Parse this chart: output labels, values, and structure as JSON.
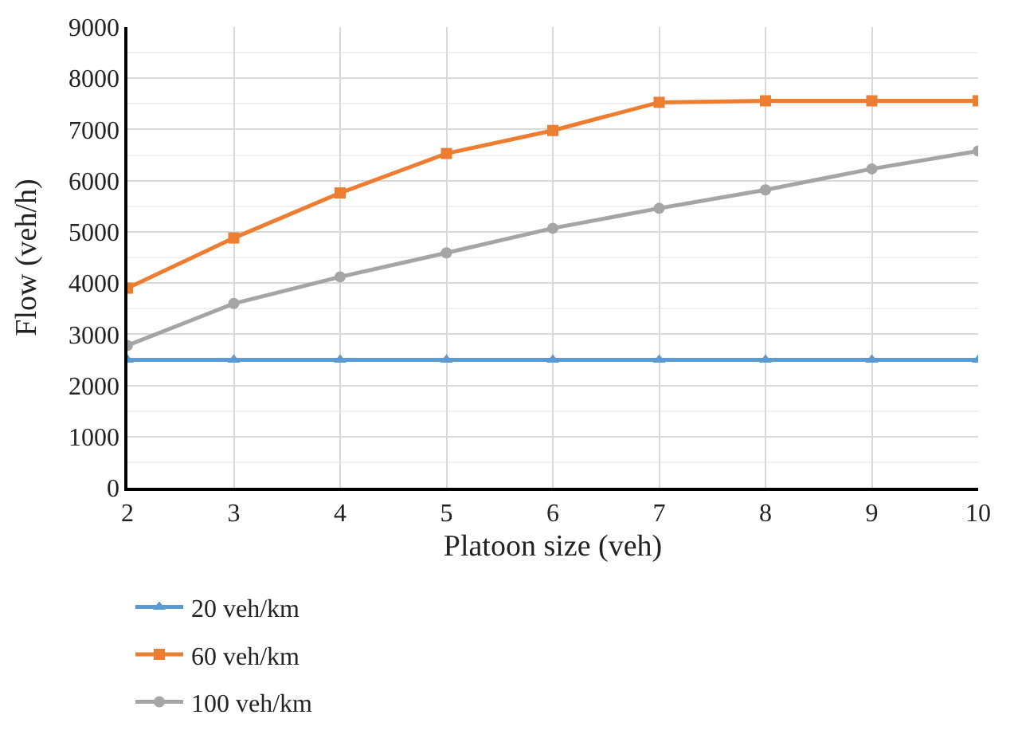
{
  "chart_data": {
    "type": "line",
    "xlabel": "Platoon size (veh)",
    "ylabel": "Flow (veh/h)",
    "x": [
      2,
      3,
      4,
      5,
      6,
      7,
      8,
      9,
      10
    ],
    "series": [
      {
        "name": "20 veh/km",
        "color": "#5b9bd5",
        "marker": "triangle",
        "values": [
          2500,
          2500,
          2500,
          2500,
          2500,
          2500,
          2500,
          2500,
          2500
        ]
      },
      {
        "name": "60 veh/km",
        "color": "#ed7d31",
        "marker": "square",
        "values": [
          3900,
          4880,
          5760,
          6530,
          6980,
          7530,
          7560,
          7560,
          7560
        ]
      },
      {
        "name": "100 veh/km",
        "color": "#a5a5a5",
        "marker": "circle",
        "values": [
          2780,
          3600,
          4120,
          4590,
          5070,
          5460,
          5820,
          6230,
          6580
        ]
      }
    ],
    "xlim": [
      2,
      10
    ],
    "xticks": [
      2,
      3,
      4,
      5,
      6,
      7,
      8,
      9,
      10
    ],
    "ylim": [
      0,
      9000
    ],
    "yticks": [
      0,
      1000,
      2000,
      3000,
      4000,
      5000,
      6000,
      7000,
      8000,
      9000
    ],
    "grid": true,
    "legend": "bottom left",
    "line_style": "solid"
  }
}
